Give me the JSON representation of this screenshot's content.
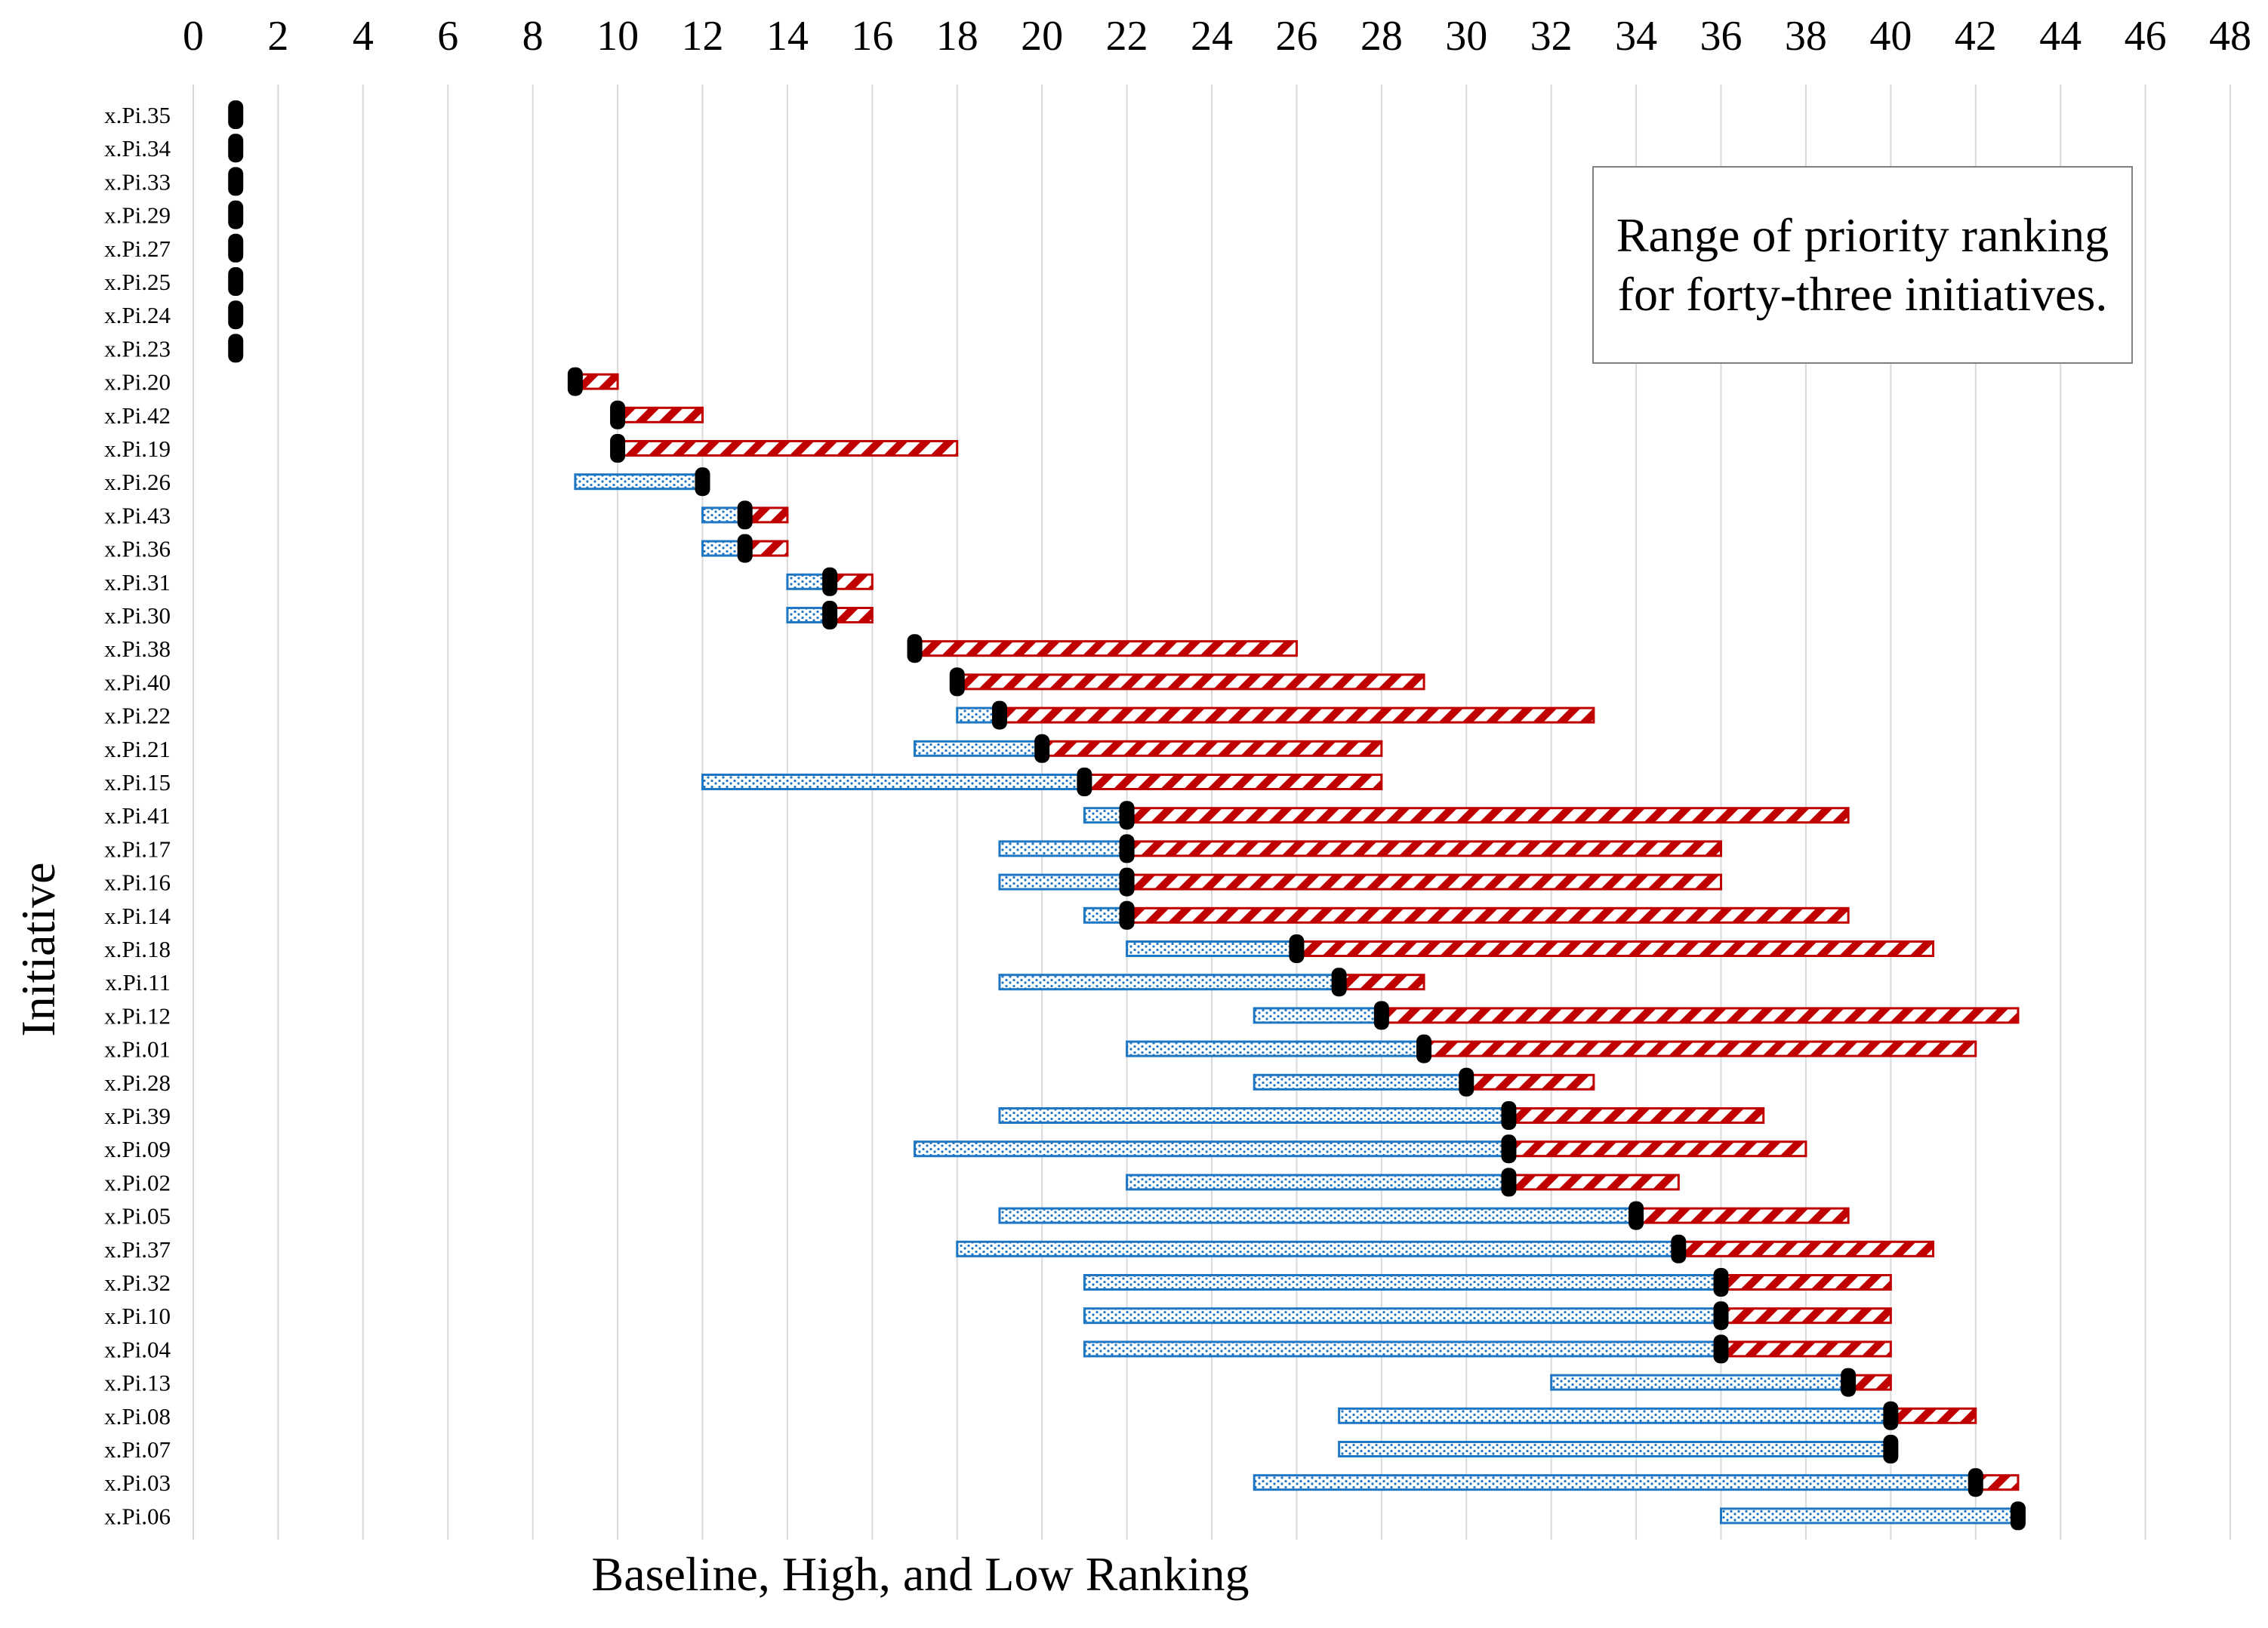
{
  "chart_data": {
    "type": "bar",
    "title": "Range of priority ranking for forty-three initiatives.",
    "xlabel": "Baseline, High, and Low Ranking",
    "ylabel": "Initiative",
    "xlim": [
      0,
      48
    ],
    "xticks": [
      "0",
      "2",
      "4",
      "6",
      "8",
      "10",
      "12",
      "14",
      "16",
      "18",
      "20",
      "22",
      "24",
      "26",
      "28",
      "30",
      "32",
      "34",
      "36",
      "38",
      "40",
      "42",
      "44",
      "46",
      "48"
    ],
    "grid": "vertical",
    "categories": [
      "x.Pi.35",
      "x.Pi.34",
      "x.Pi.33",
      "x.Pi.29",
      "x.Pi.27",
      "x.Pi.25",
      "x.Pi.24",
      "x.Pi.23",
      "x.Pi.20",
      "x.Pi.42",
      "x.Pi.19",
      "x.Pi.26",
      "x.Pi.43",
      "x.Pi.36",
      "x.Pi.31",
      "x.Pi.30",
      "x.Pi.38",
      "x.Pi.40",
      "x.Pi.22",
      "x.Pi.21",
      "x.Pi.15",
      "x.Pi.41",
      "x.Pi.17",
      "x.Pi.16",
      "x.Pi.14",
      "x.Pi.18",
      "x.Pi.11",
      "x.Pi.12",
      "x.Pi.01",
      "x.Pi.28",
      "x.Pi.39",
      "x.Pi.09",
      "x.Pi.02",
      "x.Pi.05",
      "x.Pi.37",
      "x.Pi.32",
      "x.Pi.10",
      "x.Pi.04",
      "x.Pi.13",
      "x.Pi.08",
      "x.Pi.07",
      "x.Pi.03",
      "x.Pi.06"
    ],
    "series": [
      {
        "values": [
          1,
          1,
          1,
          1,
          1,
          1,
          1,
          1,
          9,
          10,
          10,
          9,
          12,
          12,
          14,
          14,
          17,
          18,
          18,
          17,
          12,
          21,
          19,
          19,
          21,
          22,
          19,
          25,
          22,
          25,
          19,
          17,
          22,
          19,
          18,
          21,
          21,
          21,
          32,
          27,
          27,
          25,
          36
        ]
      },
      {
        "values": [
          1,
          1,
          1,
          1,
          1,
          1,
          1,
          1,
          9,
          10,
          10,
          12,
          13,
          13,
          15,
          15,
          17,
          18,
          19,
          20,
          21,
          22,
          22,
          22,
          22,
          26,
          27,
          28,
          29,
          30,
          31,
          31,
          31,
          34,
          35,
          36,
          36,
          36,
          39,
          40,
          40,
          42,
          43
        ]
      },
      {
        "values": [
          1,
          1,
          1,
          1,
          1,
          1,
          1,
          1,
          10,
          12,
          18,
          12,
          14,
          14,
          16,
          16,
          26,
          29,
          33,
          28,
          28,
          39,
          36,
          36,
          39,
          41,
          29,
          43,
          42,
          33,
          37,
          38,
          35,
          39,
          41,
          40,
          40,
          40,
          40,
          42,
          40,
          43,
          43
        ]
      }
    ],
    "colors": {
      "low_range": "#1f77c4",
      "high_range": "#c00000",
      "baseline": "#000000",
      "grid": "#d9d9d9",
      "box_border": "#7f7f7f"
    }
  }
}
